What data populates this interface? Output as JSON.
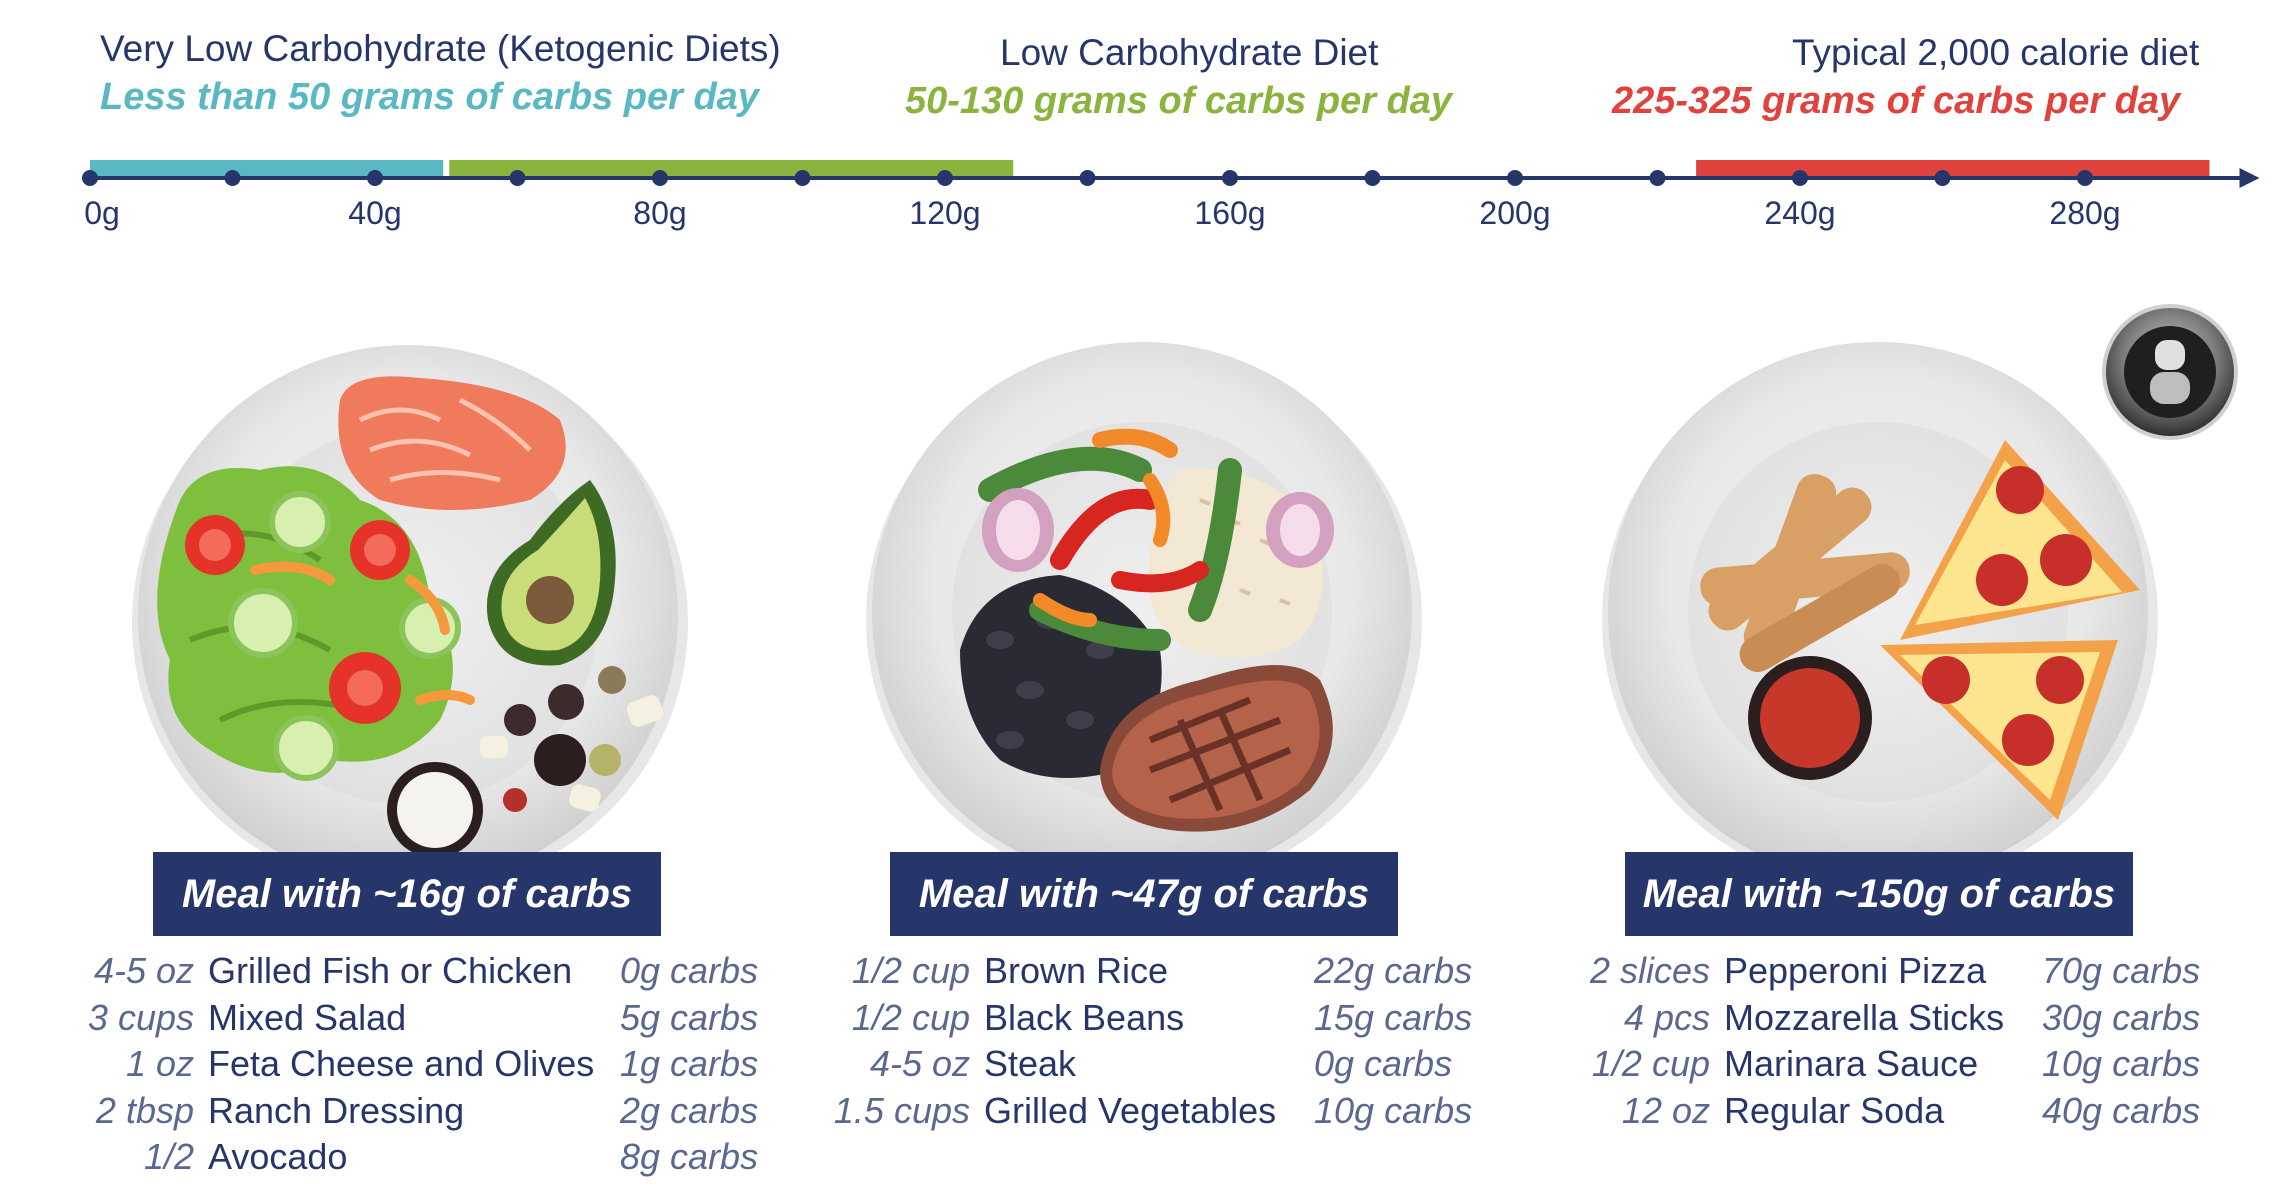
{
  "headers": [
    {
      "title": "Very Low Carbohydrate (Ketogenic Diets)",
      "range": "Less than 50 grams of carbs per day",
      "color": "#5ab8c2"
    },
    {
      "title": "Low Carbohydrate Diet",
      "range": "50-130 grams of carbs per day",
      "color": "#8bb43e"
    },
    {
      "title": "Typical 2,000 calorie diet",
      "range": "225-325 grams of carbs per day",
      "color": "#e0423e"
    }
  ],
  "scale": {
    "min": 0,
    "max": 300,
    "unit": "g",
    "tick_values": [
      0,
      20,
      40,
      60,
      80,
      100,
      120,
      140,
      160,
      180,
      200,
      220,
      240,
      260,
      280
    ],
    "labels": [
      "0g",
      "40g",
      "80g",
      "120g",
      "160g",
      "200g",
      "240g",
      "280g"
    ],
    "bands": [
      {
        "from": 0,
        "to": 50,
        "color": "#5ab8c2"
      },
      {
        "from": 50,
        "to": 130,
        "color": "#8bb43e"
      },
      {
        "from": 225,
        "to": 300,
        "color": "#e0423e"
      }
    ],
    "axis_color": "#26366b"
  },
  "meals": [
    {
      "banner": "Meal with ~16g of carbs",
      "items": [
        {
          "qty": "4-5 oz",
          "food": "Grilled Fish or Chicken",
          "carbs": "0g carbs"
        },
        {
          "qty": "3 cups",
          "food": "Mixed Salad",
          "carbs": "5g carbs"
        },
        {
          "qty": "1 oz",
          "food": "Feta Cheese and Olives",
          "carbs": "1g carbs"
        },
        {
          "qty": "2 tbsp",
          "food": "Ranch Dressing",
          "carbs": "2g carbs"
        },
        {
          "qty": "1/2",
          "food": "Avocado",
          "carbs": "8g carbs"
        }
      ]
    },
    {
      "banner": "Meal with ~47g of carbs",
      "items": [
        {
          "qty": "1/2 cup",
          "food": "Brown Rice",
          "carbs": "22g carbs"
        },
        {
          "qty": "1/2 cup",
          "food": "Black Beans",
          "carbs": "15g carbs"
        },
        {
          "qty": "4-5 oz",
          "food": "Steak",
          "carbs": "0g carbs"
        },
        {
          "qty": "1.5 cups",
          "food": "Grilled Vegetables",
          "carbs": "10g carbs"
        }
      ]
    },
    {
      "banner": "Meal with ~150g of carbs",
      "items": [
        {
          "qty": "2 slices",
          "food": "Pepperoni Pizza",
          "carbs": "70g carbs"
        },
        {
          "qty": "4 pcs",
          "food": "Mozzarella Sticks",
          "carbs": "30g carbs"
        },
        {
          "qty": "1/2 cup",
          "food": "Marinara Sauce",
          "carbs": "10g carbs"
        },
        {
          "qty": "12 oz",
          "food": "Regular Soda",
          "carbs": "40g carbs"
        }
      ]
    }
  ]
}
